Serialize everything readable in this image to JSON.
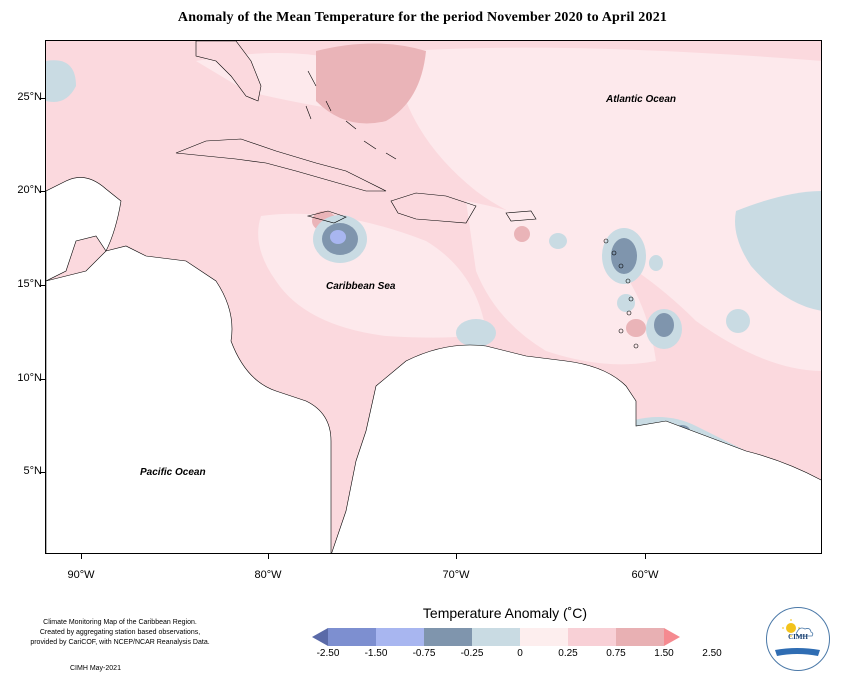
{
  "title": "Anomaly of the Mean Temperature for the period November 2020 to April 2021",
  "axes": {
    "lat_labels": [
      "25°N",
      "20°N",
      "15°N",
      "10°N",
      "5°N"
    ],
    "lon_labels": [
      "90°W",
      "80°W",
      "70°W",
      "60°W"
    ]
  },
  "map_labels": {
    "atlantic": "Atlantic Ocean",
    "caribbean": "Caribbean Sea",
    "pacific": "Pacific Ocean"
  },
  "legend": {
    "title": "Temperature Anomaly (˚C)",
    "tick_labels": [
      "-2.50",
      "-1.50",
      "-0.75",
      "-0.25",
      "0",
      "0.25",
      "0.75",
      "1.50",
      "2.50"
    ],
    "colors": [
      "#5a6aa8",
      "#7d8fd0",
      "#a8b6f0",
      "#7f95ad",
      "#c9dbe3",
      "#fdeeee",
      "#f8d0d6",
      "#e8b0b3",
      "#f58a90"
    ]
  },
  "footnote": {
    "line1": "Climate Monitoring Map of the Caribbean Region.",
    "line2": "Created by aggregating station based observations,",
    "line3": "provided by CariCOF, with NCEP/NCAR Reanalysis Data.",
    "credit": "CIMH May-2021"
  },
  "logo": {
    "text": "CIMH"
  }
}
